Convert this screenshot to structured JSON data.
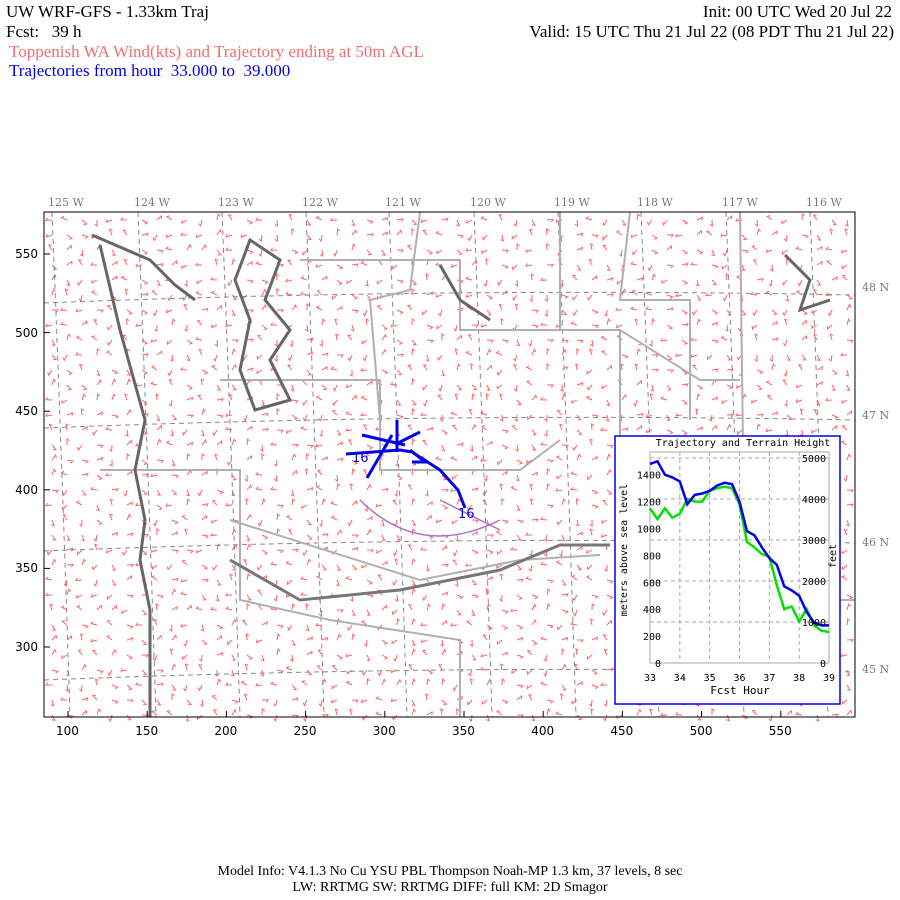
{
  "header": {
    "title": "UW WRF-GFS - 1.33km Traj",
    "init": "Init: 00 UTC Wed 20 Jul 22",
    "fcst": "Fcst:   39 h",
    "valid": "Valid: 15 UTC Thu 21 Jul 22 (08 PDT Thu 21 Jul 22)",
    "subtitle": "Toppenish WA Wind(kts) and Trajectory ending at 50m AGL",
    "traj_range": "Trajectories from hour  33.000 to  39.000"
  },
  "map": {
    "x_ticks": [
      "100",
      "150",
      "200",
      "250",
      "300",
      "350",
      "400",
      "450",
      "500",
      "550"
    ],
    "y_ticks": [
      "550",
      "500",
      "450",
      "400",
      "350",
      "300"
    ],
    "lon_labels": [
      "125 W",
      "124 W",
      "123 W",
      "122 W",
      "121 W",
      "120 W",
      "119 W",
      "118 W",
      "117 W",
      "116 W"
    ],
    "lat_labels": [
      "48 N",
      "47 N",
      "46 N",
      "45 N"
    ],
    "traj_labels": [
      "16",
      "16"
    ],
    "colors": {
      "wind": "#ff6060",
      "trajectory": "#0000ee",
      "coast": "#666666",
      "borders": "#b0b0b0",
      "rivers": "#b070c0"
    }
  },
  "chart_data": {
    "type": "line",
    "title": "Trajectory and Terrain Height",
    "xlabel": "Fcst Hour",
    "ylabel": "meters above sea level",
    "y2label": "feet",
    "xlim": [
      33,
      39
    ],
    "ylim": [
      0,
      1550
    ],
    "x_ticks": [
      "33",
      "34",
      "35",
      "36",
      "37",
      "38",
      "39"
    ],
    "y_ticks": [
      "0",
      "200",
      "400",
      "600",
      "800",
      "1000",
      "1200",
      "1400"
    ],
    "y2_ticks": [
      "0",
      "1000",
      "2000",
      "3000",
      "4000",
      "5000"
    ],
    "x": [
      33,
      33.25,
      33.5,
      33.75,
      34,
      34.25,
      34.5,
      34.75,
      35,
      35.25,
      35.5,
      35.75,
      36,
      36.25,
      36.5,
      36.75,
      37,
      37.25,
      37.5,
      37.75,
      38,
      38.25,
      38.5,
      38.75,
      39
    ],
    "series": [
      {
        "color": "#0000ee",
        "values": [
          1480,
          1500,
          1400,
          1380,
          1350,
          1180,
          1250,
          1260,
          1280,
          1320,
          1340,
          1330,
          1200,
          980,
          950,
          860,
          780,
          730,
          570,
          540,
          500,
          380,
          300,
          280,
          280
        ]
      },
      {
        "color": "#00e000",
        "values": [
          1150,
          1070,
          1150,
          1080,
          1110,
          1220,
          1200,
          1200,
          1280,
          1300,
          1310,
          1300,
          1180,
          900,
          860,
          810,
          790,
          580,
          400,
          420,
          310,
          400,
          280,
          240,
          230
        ]
      }
    ]
  },
  "footer": {
    "line1": "Model Info: V4.1.3    No Cu    YSU PBL  Thompson     Noah-MP    1.3 km,  37 levels,     8 sec",
    "line2": "LW: RRTMG SW: RRTMG    DIFF: full    KM: 2D Smagor"
  }
}
